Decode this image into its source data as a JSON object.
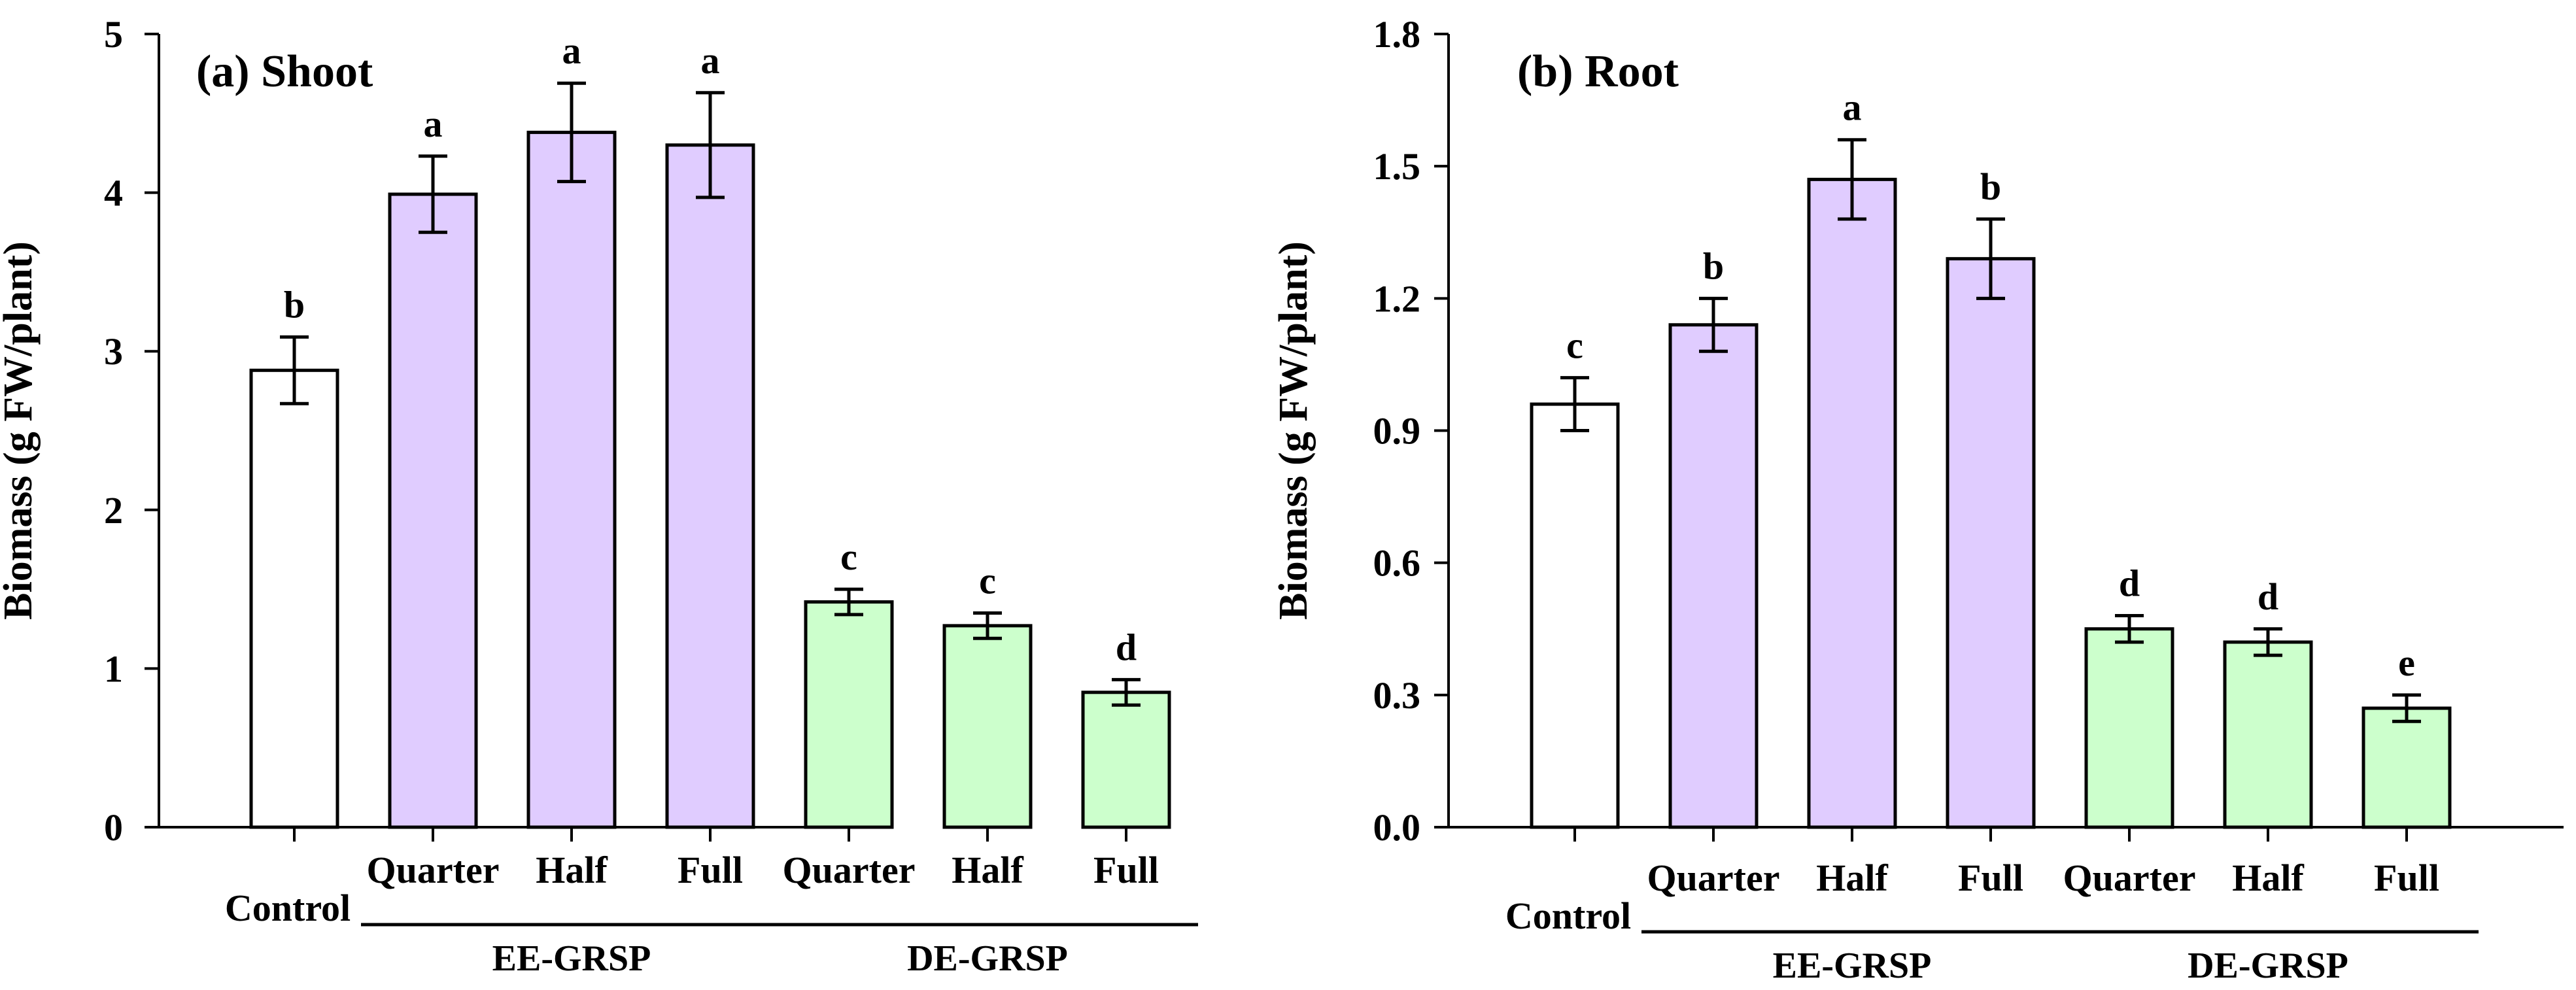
{
  "chart_data": [
    {
      "type": "bar",
      "title": "(a) Shoot",
      "ylabel": "Biomass (g FW/plant)",
      "ylim": [
        0,
        5
      ],
      "yticks": [
        "0",
        "1",
        "2",
        "3",
        "4",
        "5"
      ],
      "categories": [
        "Control",
        "Quarter",
        "Half",
        "Full",
        "Quarter",
        "Half",
        "Full"
      ],
      "values": [
        2.88,
        3.99,
        4.38,
        4.3,
        1.42,
        1.27,
        0.85
      ],
      "errors": [
        0.21,
        0.24,
        0.31,
        0.33,
        0.08,
        0.08,
        0.08
      ],
      "significance": [
        "b",
        "a",
        "a",
        "a",
        "c",
        "c",
        "d"
      ],
      "colors": [
        "#ffffff",
        "#e0ccff",
        "#e0ccff",
        "#e0ccff",
        "#ccffcc",
        "#ccffcc",
        "#ccffcc"
      ],
      "groups": [
        {
          "label": "EE-GRSP",
          "from": 1,
          "to": 3
        },
        {
          "label": "DE-GRSP",
          "from": 4,
          "to": 6
        }
      ]
    },
    {
      "type": "bar",
      "title": "(b) Root",
      "ylabel": "Biomass (g FW/plant)",
      "ylim": [
        0,
        1.8
      ],
      "yticks": [
        "0.0",
        "0.3",
        "0.6",
        "0.9",
        "1.2",
        "1.5",
        "1.8"
      ],
      "categories": [
        "Control",
        "Quarter",
        "Half",
        "Full",
        "Quarter",
        "Half",
        "Full"
      ],
      "values": [
        0.96,
        1.14,
        1.47,
        1.29,
        0.45,
        0.42,
        0.27
      ],
      "errors": [
        0.06,
        0.06,
        0.09,
        0.09,
        0.03,
        0.03,
        0.03
      ],
      "significance": [
        "c",
        "b",
        "a",
        "b",
        "d",
        "d",
        "e"
      ],
      "colors": [
        "#ffffff",
        "#e0ccff",
        "#e0ccff",
        "#e0ccff",
        "#ccffcc",
        "#ccffcc",
        "#ccffcc"
      ],
      "groups": [
        {
          "label": "EE-GRSP",
          "from": 1,
          "to": 3
        },
        {
          "label": "DE-GRSP",
          "from": 4,
          "to": 6
        }
      ]
    }
  ]
}
